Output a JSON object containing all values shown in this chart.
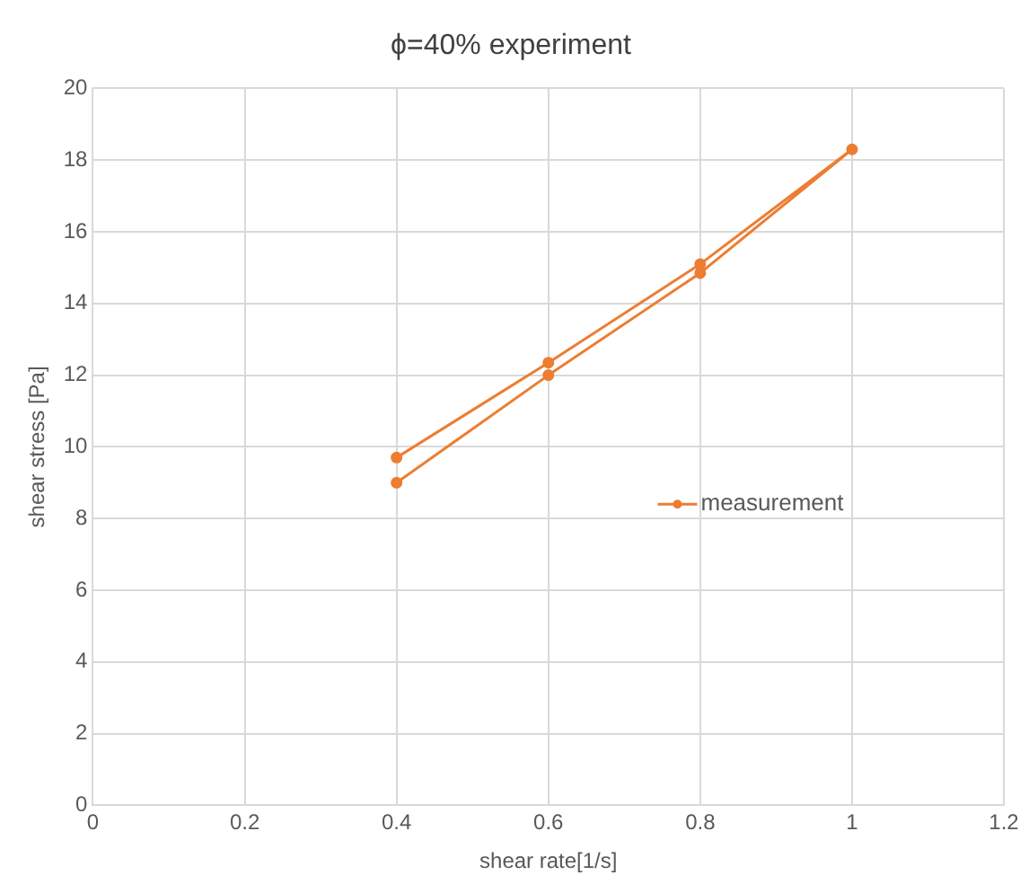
{
  "chart_data": {
    "type": "line",
    "title": "ϕ=40% experiment",
    "xlabel": "shear rate[1/s]",
    "ylabel": "shear stress [Pa]",
    "series": [
      {
        "name": "measurement",
        "color": "#ed7d31",
        "x": [
          0.4,
          0.6,
          0.8,
          1,
          0.8,
          0.6,
          0.4
        ],
        "values": [
          9.0,
          12.0,
          14.85,
          18.3,
          15.1,
          12.35,
          9.7
        ]
      }
    ],
    "xlim": [
      0,
      1.2
    ],
    "xticks": [
      0,
      0.2,
      0.4,
      0.6,
      0.8,
      1,
      1.2
    ],
    "ylim": [
      0,
      20
    ],
    "yticks": [
      0,
      2,
      4,
      6,
      8,
      10,
      12,
      14,
      16,
      18,
      20
    ],
    "grid": true,
    "legend": "right",
    "marker": "circle",
    "line_style": "solid"
  }
}
